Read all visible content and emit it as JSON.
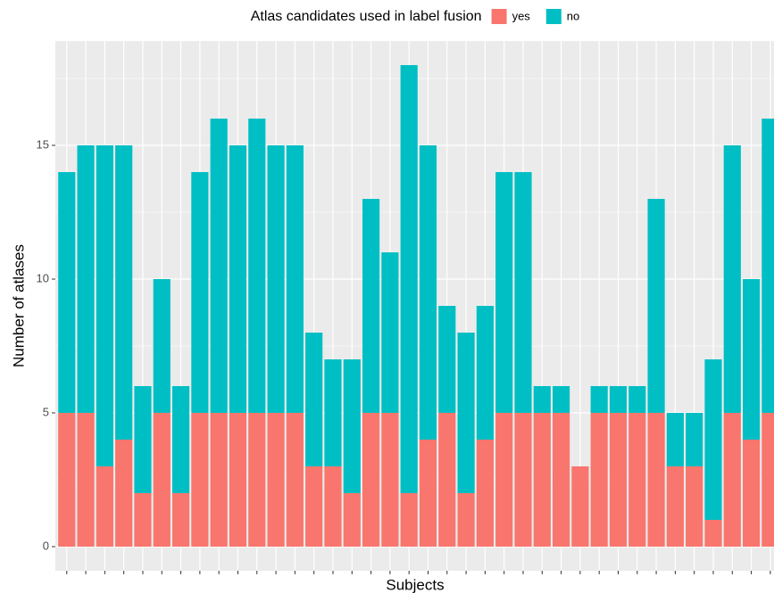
{
  "chart_data": {
    "type": "bar",
    "stacked": true,
    "legend_title": "Atlas candidates used in label fusion",
    "x_label": "Subjects",
    "y_label": "Number of atlases",
    "categories": [
      null,
      null,
      null,
      null,
      null,
      null,
      null,
      null,
      null,
      null,
      null,
      null,
      null,
      null,
      null,
      null,
      null,
      null,
      null,
      null,
      null,
      null,
      null,
      null,
      null,
      null,
      null,
      null,
      null,
      null,
      null,
      null,
      null,
      null,
      null,
      null,
      null,
      null
    ],
    "series": [
      {
        "name": "yes",
        "color": "#F8766D",
        "values": [
          5,
          5,
          3,
          4,
          2,
          5,
          2,
          5,
          5,
          5,
          5,
          5,
          5,
          3,
          3,
          2,
          5,
          5,
          2,
          4,
          5,
          2,
          4,
          5,
          5,
          5,
          5,
          3,
          5,
          5,
          5,
          5,
          3,
          3,
          1,
          5,
          4,
          5
        ]
      },
      {
        "name": "no",
        "color": "#00BFC4",
        "values": [
          9,
          10,
          12,
          11,
          4,
          5,
          4,
          9,
          11,
          10,
          11,
          10,
          10,
          5,
          4,
          5,
          8,
          6,
          16,
          11,
          4,
          6,
          5,
          9,
          9,
          1,
          1,
          0,
          1,
          1,
          1,
          8,
          2,
          2,
          6,
          10,
          6,
          11
        ]
      }
    ],
    "ylim": [
      -0.9,
      18.9
    ],
    "yticks": [
      0,
      5,
      10,
      15
    ],
    "grid": true,
    "legend": "top"
  }
}
